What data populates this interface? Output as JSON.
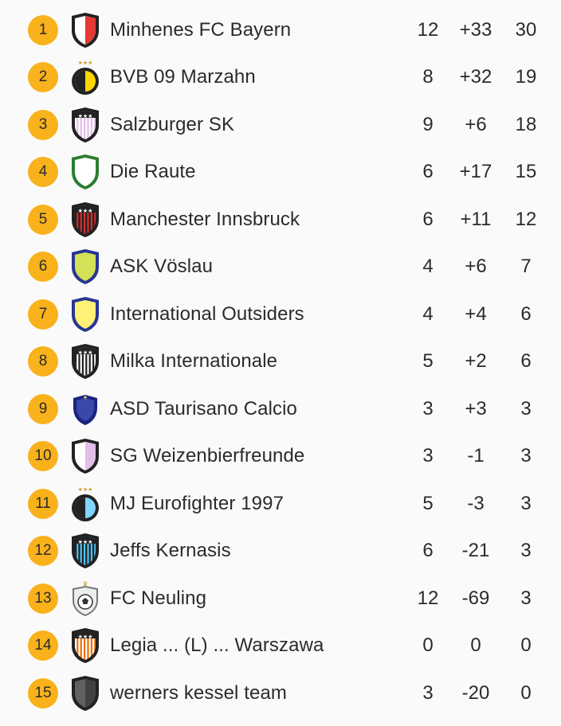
{
  "standings": [
    {
      "rank": "1",
      "team": "Minhenes FC Bayern",
      "played": "12",
      "diff": "+33",
      "points": "30",
      "crest": "shield-red-icon",
      "crest_colors": [
        "#ffffff",
        "#e53935"
      ]
    },
    {
      "rank": "2",
      "team": "BVB 09 Marzahn",
      "played": "8",
      "diff": "+32",
      "points": "19",
      "crest": "round-yellow-black-icon",
      "crest_colors": [
        "#ffd600",
        "#222222"
      ]
    },
    {
      "rank": "3",
      "team": "Salzburger SK",
      "played": "9",
      "diff": "+6",
      "points": "18",
      "crest": "shield-purple-stripes-icon",
      "crest_colors": [
        "#e1bee7",
        "#ffffff"
      ]
    },
    {
      "rank": "4",
      "team": "Die Raute",
      "played": "6",
      "diff": "+17",
      "points": "15",
      "crest": "shield-green-icon",
      "crest_colors": [
        "#ffffff",
        "#2e7d32"
      ]
    },
    {
      "rank": "5",
      "team": "Manchester Innsbruck",
      "played": "6",
      "diff": "+11",
      "points": "12",
      "crest": "shield-red-black-stripes-icon",
      "crest_colors": [
        "#d32f2f",
        "#222222"
      ]
    },
    {
      "rank": "6",
      "team": "ASK Vöslau",
      "played": "4",
      "diff": "+6",
      "points": "7",
      "crest": "shield-blue-lime-icon",
      "crest_colors": [
        "#d4e157",
        "#283593"
      ]
    },
    {
      "rank": "7",
      "team": "International Outsiders",
      "played": "4",
      "diff": "+4",
      "points": "6",
      "crest": "shield-blue-yellow-icon",
      "crest_colors": [
        "#fff176",
        "#283593"
      ]
    },
    {
      "rank": "8",
      "team": "Milka Internationale",
      "played": "5",
      "diff": "+2",
      "points": "6",
      "crest": "shield-black-white-stripes-icon",
      "crest_colors": [
        "#ffffff",
        "#222222"
      ]
    },
    {
      "rank": "9",
      "team": "ASD Taurisano Calcio",
      "played": "3",
      "diff": "+3",
      "points": "3",
      "crest": "shield-navy-icon",
      "crest_colors": [
        "#1a237e",
        "#ffd54f"
      ]
    },
    {
      "rank": "10",
      "team": "SG Weizenbierfreunde",
      "played": "3",
      "diff": "-1",
      "points": "3",
      "crest": "shield-white-lilac-icon",
      "crest_colors": [
        "#ffffff",
        "#e1bee7"
      ]
    },
    {
      "rank": "11",
      "team": "MJ Eurofighter 1997",
      "played": "5",
      "diff": "-3",
      "points": "3",
      "crest": "round-lightblue-black-icon",
      "crest_colors": [
        "#81d4fa",
        "#222222"
      ]
    },
    {
      "rank": "12",
      "team": "Jeffs Kernasis",
      "played": "6",
      "diff": "-21",
      "points": "3",
      "crest": "shield-blue-black-stripes-icon",
      "crest_colors": [
        "#4fc3f7",
        "#222222"
      ]
    },
    {
      "rank": "13",
      "team": "FC Neuling",
      "played": "12",
      "diff": "-69",
      "points": "3",
      "crest": "shield-soccer-ball-icon",
      "crest_colors": [
        "#eeeeee",
        "#555555"
      ]
    },
    {
      "rank": "14",
      "team": "Legia ... (L) ... Warszawa",
      "played": "0",
      "diff": "0",
      "points": "0",
      "crest": "shield-orange-stripes-icon",
      "crest_colors": [
        "#ef6c00",
        "#ffffff"
      ]
    },
    {
      "rank": "15",
      "team": "werners kessel team",
      "played": "3",
      "diff": "-20",
      "points": "0",
      "crest": "shield-dark-grey-icon",
      "crest_colors": [
        "#616161",
        "#222222"
      ]
    }
  ],
  "colors": {
    "rank_badge": "#f9b21b",
    "background": "#fafafa",
    "text": "#2b2b2b"
  }
}
